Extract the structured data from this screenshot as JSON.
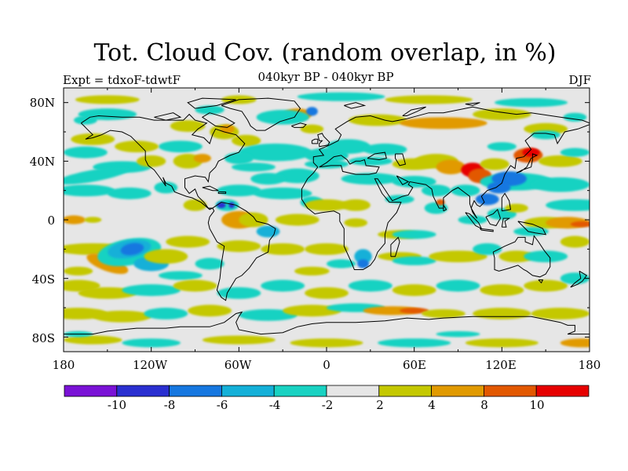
{
  "title": "Tot. Cloud Cov. (random overlap, in %)",
  "subtitle": "040kyr BP - 040kyr BP",
  "experiment": "Expt = tdxoF-tdwtF",
  "season": "DJF",
  "latitude_labels": [
    "80N",
    "40N",
    "0",
    "40S",
    "80S"
  ],
  "longitude_labels": [
    "180",
    "120W",
    "60W",
    "0",
    "60E",
    "120E",
    "180"
  ],
  "colorbar": {
    "labels": [
      "-10",
      "-8",
      "-6",
      "-4",
      "-2",
      "2",
      "4",
      "8",
      "10"
    ],
    "colors": [
      "#7a12d6",
      "#2a2fd0",
      "#1677e0",
      "#14b0d8",
      "#19d2c2",
      "#e6e6e6",
      "#c4c800",
      "#e19a00",
      "#e25800",
      "#e60000"
    ]
  },
  "colors": {
    "ocean_background": "#e6e6e6",
    "coastline": "#000000"
  }
}
